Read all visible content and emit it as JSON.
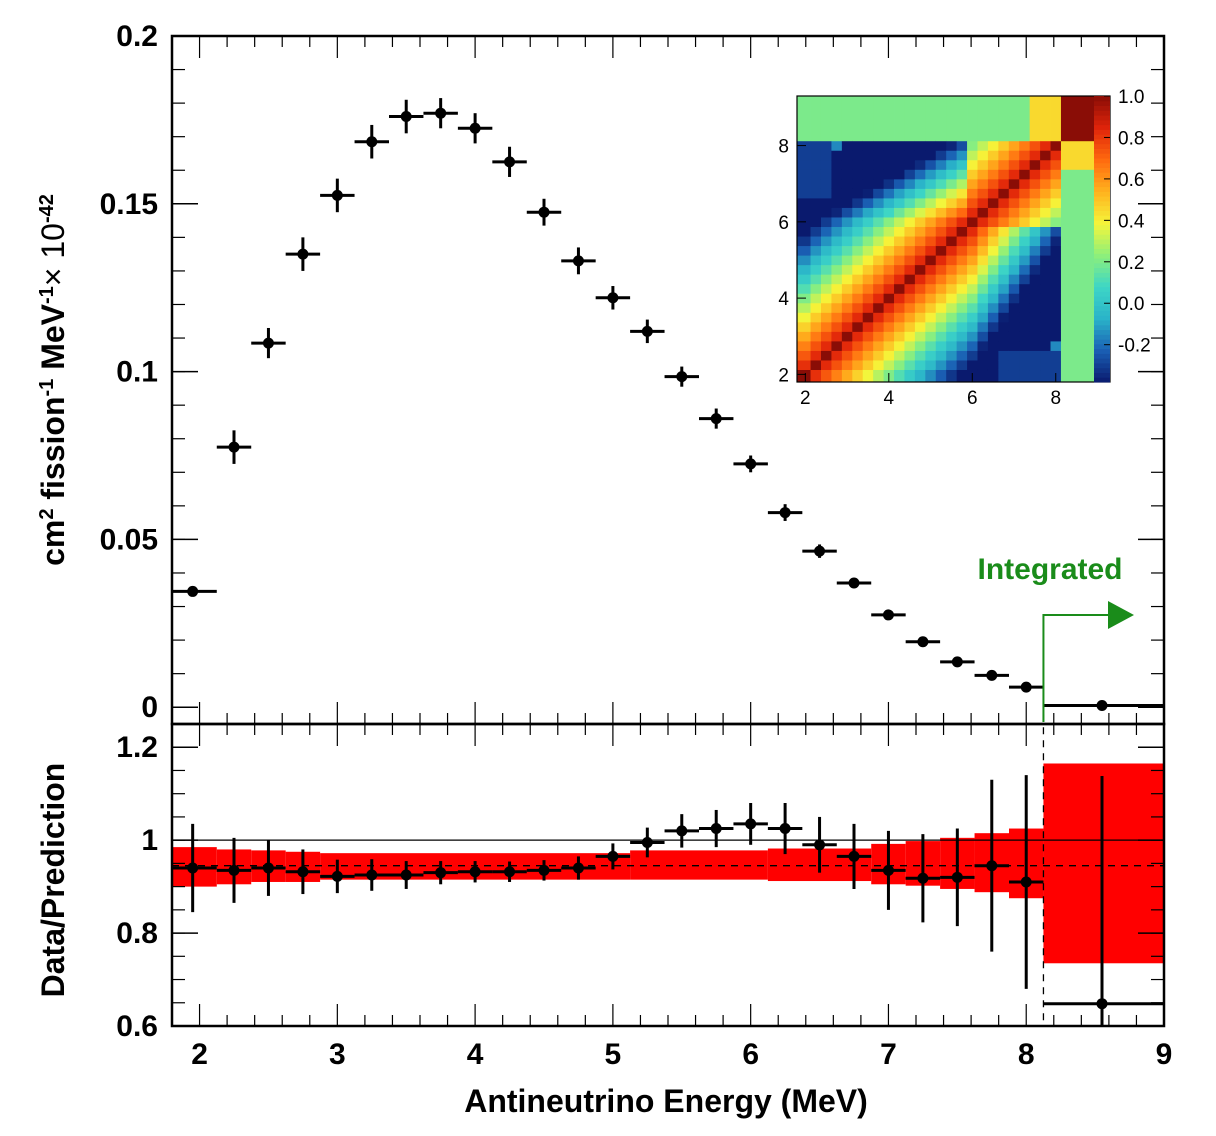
{
  "chart_data": [
    {
      "type": "scatter",
      "panel": "spectrum",
      "ylabel_parts": {
        "base": "cm",
        "sup1": "2",
        "mid1": " fission",
        "sup2": "-1",
        "mid2": " MeV",
        "sup3": "-1",
        "mid3": "× 10",
        "sup4": "-42"
      },
      "xlim": [
        1.8,
        9.0
      ],
      "ylim": [
        -0.005,
        0.2
      ],
      "yticks": [
        "0",
        "0.05",
        "0.1",
        "0.15",
        "0.2"
      ],
      "ytick_values": [
        0,
        0.05,
        0.1,
        0.15,
        0.2
      ],
      "points": [
        {
          "x": 1.95,
          "xlo": 1.8,
          "xhi": 2.125,
          "y": 0.0345,
          "err": 0.0015
        },
        {
          "x": 2.25,
          "xlo": 2.125,
          "xhi": 2.375,
          "y": 0.0775,
          "err": 0.005
        },
        {
          "x": 2.5,
          "xlo": 2.375,
          "xhi": 2.625,
          "y": 0.1085,
          "err": 0.0045
        },
        {
          "x": 2.75,
          "xlo": 2.625,
          "xhi": 2.875,
          "y": 0.135,
          "err": 0.005
        },
        {
          "x": 3.0,
          "xlo": 2.875,
          "xhi": 3.125,
          "y": 0.1525,
          "err": 0.005
        },
        {
          "x": 3.25,
          "xlo": 3.125,
          "xhi": 3.375,
          "y": 0.1685,
          "err": 0.005
        },
        {
          "x": 3.5,
          "xlo": 3.375,
          "xhi": 3.625,
          "y": 0.176,
          "err": 0.005
        },
        {
          "x": 3.75,
          "xlo": 3.625,
          "xhi": 3.875,
          "y": 0.177,
          "err": 0.0045
        },
        {
          "x": 4.0,
          "xlo": 3.875,
          "xhi": 4.125,
          "y": 0.1725,
          "err": 0.0045
        },
        {
          "x": 4.25,
          "xlo": 4.125,
          "xhi": 4.375,
          "y": 0.1625,
          "err": 0.0045
        },
        {
          "x": 4.5,
          "xlo": 4.375,
          "xhi": 4.625,
          "y": 0.1475,
          "err": 0.004
        },
        {
          "x": 4.75,
          "xlo": 4.625,
          "xhi": 4.875,
          "y": 0.133,
          "err": 0.004
        },
        {
          "x": 5.0,
          "xlo": 4.875,
          "xhi": 5.125,
          "y": 0.122,
          "err": 0.0035
        },
        {
          "x": 5.25,
          "xlo": 5.125,
          "xhi": 5.375,
          "y": 0.112,
          "err": 0.0035
        },
        {
          "x": 5.5,
          "xlo": 5.375,
          "xhi": 5.625,
          "y": 0.0985,
          "err": 0.003
        },
        {
          "x": 5.75,
          "xlo": 5.625,
          "xhi": 5.875,
          "y": 0.086,
          "err": 0.003
        },
        {
          "x": 6.0,
          "xlo": 5.875,
          "xhi": 6.125,
          "y": 0.0725,
          "err": 0.0025
        },
        {
          "x": 6.25,
          "xlo": 6.125,
          "xhi": 6.375,
          "y": 0.058,
          "err": 0.0025
        },
        {
          "x": 6.5,
          "xlo": 6.375,
          "xhi": 6.625,
          "y": 0.0465,
          "err": 0.002
        },
        {
          "x": 6.75,
          "xlo": 6.625,
          "xhi": 6.875,
          "y": 0.037,
          "err": 0.0015
        },
        {
          "x": 7.0,
          "xlo": 6.875,
          "xhi": 7.125,
          "y": 0.0275,
          "err": 0.0015
        },
        {
          "x": 7.25,
          "xlo": 7.125,
          "xhi": 7.375,
          "y": 0.0195,
          "err": 0.001
        },
        {
          "x": 7.5,
          "xlo": 7.375,
          "xhi": 7.625,
          "y": 0.0135,
          "err": 0.0008
        },
        {
          "x": 7.75,
          "xlo": 7.625,
          "xhi": 7.875,
          "y": 0.0095,
          "err": 0.0006
        },
        {
          "x": 8.0,
          "xlo": 7.875,
          "xhi": 8.125,
          "y": 0.006,
          "err": 0.0005
        },
        {
          "x": 8.55,
          "xlo": 8.125,
          "xhi": 9.0,
          "y": 0.0005,
          "err": 0.0002
        }
      ],
      "annotation": {
        "text": "Integrated",
        "color": "#1a8c1a",
        "x_start": 8.125
      }
    },
    {
      "type": "scatter",
      "panel": "ratio",
      "ylabel": "Data/Prediction",
      "xlabel": "Antineutrino Energy (MeV)",
      "xlim": [
        1.8,
        9.0
      ],
      "ylim": [
        0.6,
        1.25
      ],
      "xticks": [
        "2",
        "3",
        "4",
        "5",
        "6",
        "7",
        "8",
        "9"
      ],
      "xtick_values": [
        2,
        3,
        4,
        5,
        6,
        7,
        8,
        9
      ],
      "yticks": [
        "0.6",
        "0.8",
        "1",
        "1.2"
      ],
      "ytick_values": [
        0.6,
        0.8,
        1.0,
        1.2
      ],
      "reference_line": 1.0,
      "dashed_line": 0.945,
      "band_color": "#ff0000",
      "band": [
        {
          "xlo": 1.8,
          "xhi": 2.125,
          "lo": 0.9,
          "hi": 0.985
        },
        {
          "xlo": 2.125,
          "xhi": 2.375,
          "lo": 0.905,
          "hi": 0.98
        },
        {
          "xlo": 2.375,
          "xhi": 2.625,
          "lo": 0.91,
          "hi": 0.978
        },
        {
          "xlo": 2.625,
          "xhi": 2.875,
          "lo": 0.91,
          "hi": 0.975
        },
        {
          "xlo": 2.875,
          "xhi": 5.125,
          "lo": 0.915,
          "hi": 0.972
        },
        {
          "xlo": 5.125,
          "xhi": 6.125,
          "lo": 0.915,
          "hi": 0.978
        },
        {
          "xlo": 6.125,
          "xhi": 6.875,
          "lo": 0.912,
          "hi": 0.982
        },
        {
          "xlo": 6.875,
          "xhi": 7.125,
          "lo": 0.905,
          "hi": 0.992
        },
        {
          "xlo": 7.125,
          "xhi": 7.375,
          "lo": 0.902,
          "hi": 0.998
        },
        {
          "xlo": 7.375,
          "xhi": 7.625,
          "lo": 0.895,
          "hi": 1.005
        },
        {
          "xlo": 7.625,
          "xhi": 7.875,
          "lo": 0.888,
          "hi": 1.015
        },
        {
          "xlo": 7.875,
          "xhi": 8.125,
          "lo": 0.875,
          "hi": 1.025
        },
        {
          "xlo": 8.125,
          "xhi": 9.0,
          "lo": 0.735,
          "hi": 1.165
        }
      ],
      "points": [
        {
          "x": 1.95,
          "xlo": 1.8,
          "xhi": 2.125,
          "y": 0.94,
          "err": 0.095
        },
        {
          "x": 2.25,
          "xlo": 2.125,
          "xhi": 2.375,
          "y": 0.935,
          "err": 0.07
        },
        {
          "x": 2.5,
          "xlo": 2.375,
          "xhi": 2.625,
          "y": 0.94,
          "err": 0.06
        },
        {
          "x": 2.75,
          "xlo": 2.625,
          "xhi": 2.875,
          "y": 0.932,
          "err": 0.048
        },
        {
          "x": 3.0,
          "xlo": 2.875,
          "xhi": 3.125,
          "y": 0.922,
          "err": 0.036
        },
        {
          "x": 3.25,
          "xlo": 3.125,
          "xhi": 3.375,
          "y": 0.925,
          "err": 0.034
        },
        {
          "x": 3.5,
          "xlo": 3.375,
          "xhi": 3.625,
          "y": 0.925,
          "err": 0.03
        },
        {
          "x": 3.75,
          "xlo": 3.625,
          "xhi": 3.875,
          "y": 0.93,
          "err": 0.025
        },
        {
          "x": 4.0,
          "xlo": 3.875,
          "xhi": 4.125,
          "y": 0.932,
          "err": 0.023
        },
        {
          "x": 4.25,
          "xlo": 4.125,
          "xhi": 4.375,
          "y": 0.932,
          "err": 0.022
        },
        {
          "x": 4.5,
          "xlo": 4.375,
          "xhi": 4.625,
          "y": 0.935,
          "err": 0.022
        },
        {
          "x": 4.75,
          "xlo": 4.625,
          "xhi": 4.875,
          "y": 0.94,
          "err": 0.025
        },
        {
          "x": 5.0,
          "xlo": 4.875,
          "xhi": 5.125,
          "y": 0.965,
          "err": 0.028
        },
        {
          "x": 5.25,
          "xlo": 5.125,
          "xhi": 5.375,
          "y": 0.995,
          "err": 0.032
        },
        {
          "x": 5.5,
          "xlo": 5.375,
          "xhi": 5.625,
          "y": 1.02,
          "err": 0.036
        },
        {
          "x": 5.75,
          "xlo": 5.625,
          "xhi": 5.875,
          "y": 1.025,
          "err": 0.04
        },
        {
          "x": 6.0,
          "xlo": 5.875,
          "xhi": 6.125,
          "y": 1.035,
          "err": 0.045
        },
        {
          "x": 6.25,
          "xlo": 6.125,
          "xhi": 6.375,
          "y": 1.025,
          "err": 0.055
        },
        {
          "x": 6.5,
          "xlo": 6.375,
          "xhi": 6.625,
          "y": 0.99,
          "err": 0.06
        },
        {
          "x": 6.75,
          "xlo": 6.625,
          "xhi": 6.875,
          "y": 0.965,
          "err": 0.07
        },
        {
          "x": 7.0,
          "xlo": 6.875,
          "xhi": 7.125,
          "y": 0.935,
          "err": 0.085
        },
        {
          "x": 7.25,
          "xlo": 7.125,
          "xhi": 7.375,
          "y": 0.918,
          "err": 0.095
        },
        {
          "x": 7.5,
          "xlo": 7.375,
          "xhi": 7.625,
          "y": 0.92,
          "err": 0.105
        },
        {
          "x": 7.75,
          "xlo": 7.625,
          "xhi": 7.875,
          "y": 0.945,
          "err": 0.185
        },
        {
          "x": 8.0,
          "xlo": 7.875,
          "xhi": 8.125,
          "y": 0.91,
          "err": 0.23
        },
        {
          "x": 8.55,
          "xlo": 8.125,
          "xhi": 9.0,
          "y": 0.648,
          "err": 0.49
        }
      ]
    },
    {
      "type": "heatmap",
      "panel": "inset-correlation",
      "xlim": [
        1.8,
        9.3
      ],
      "ylim": [
        1.8,
        9.3
      ],
      "xticks": [
        "2",
        "4",
        "6",
        "8"
      ],
      "xtick_values": [
        2,
        4,
        6,
        8
      ],
      "yticks": [
        "2",
        "4",
        "6",
        "8"
      ],
      "ytick_values": [
        2,
        4,
        6,
        8
      ],
      "colorbar_ticks": [
        "1.0",
        "0.8",
        "0.6",
        "0.4",
        "0.2",
        "0.0",
        "-0.2"
      ],
      "colorbar_tick_values": [
        1.0,
        0.8,
        0.6,
        0.4,
        0.2,
        0.0,
        -0.2
      ],
      "zlim": [
        -0.38,
        1.0
      ],
      "bins": [
        1.8,
        2.125,
        2.375,
        2.625,
        2.875,
        3.125,
        3.375,
        3.625,
        3.875,
        4.125,
        4.375,
        4.625,
        4.875,
        5.125,
        5.375,
        5.625,
        5.875,
        6.125,
        6.375,
        6.625,
        6.875,
        7.125,
        7.375,
        7.625,
        7.875,
        8.125,
        9.3
      ],
      "colorscale": [
        "#0a1a6e",
        "#1a5fb4",
        "#2ab3c9",
        "#3dd6c6",
        "#8ef07a",
        "#f5f53a",
        "#ffb21e",
        "#ff6a0f",
        "#e0240a",
        "#8a0d06"
      ]
    }
  ]
}
